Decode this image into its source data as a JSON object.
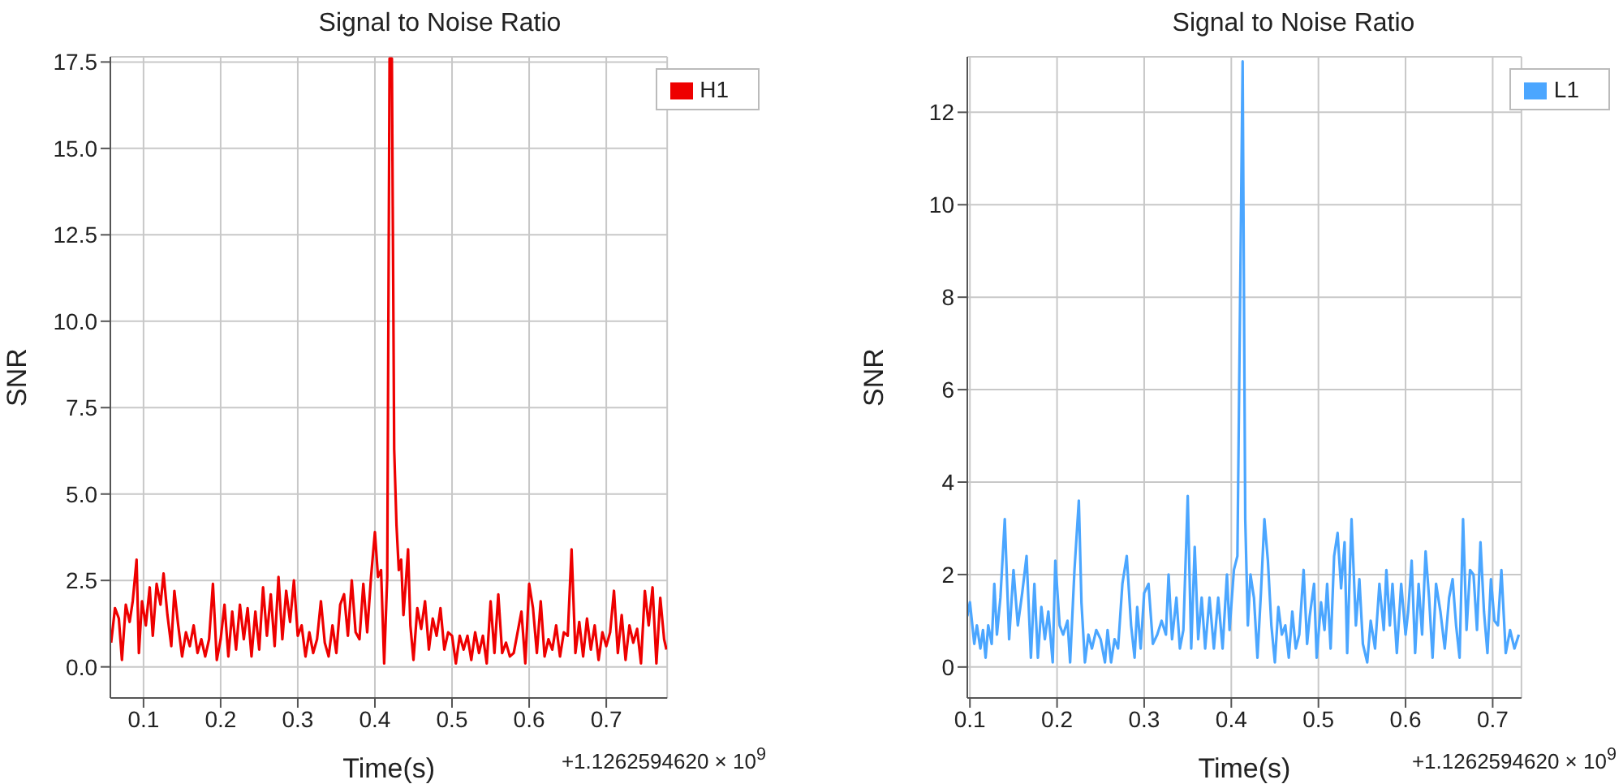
{
  "chart_data": [
    {
      "type": "line",
      "title": "Signal to Noise Ratio",
      "xlabel": "Time(s)",
      "ylabel": "SNR",
      "annotations": [
        "+1.1262594620 × 10$^{9}$"
      ],
      "xlim": [
        0.057,
        0.779
      ],
      "xticks": [
        0.1,
        0.2,
        0.3,
        0.4,
        0.5,
        0.6,
        0.7
      ],
      "ylim": [
        -0.9,
        17.65
      ],
      "yticks": [
        {
          "value": 0,
          "label": "0.0"
        },
        {
          "value": 2.5,
          "label": "2.5"
        },
        {
          "value": 5,
          "label": "5.0"
        },
        {
          "value": 7.5,
          "label": "7.5"
        },
        {
          "value": 10,
          "label": "10.0"
        },
        {
          "value": 12.5,
          "label": "12.5"
        },
        {
          "value": 15,
          "label": "15.0"
        },
        {
          "value": 17.5,
          "label": "17.5"
        }
      ],
      "grid": true,
      "legend": "top right",
      "series": [
        {
          "name": "H1",
          "color": "#ee0000",
          "x": [
            0.058,
            0.063,
            0.068,
            0.072,
            0.077,
            0.082,
            0.086,
            0.091,
            0.094,
            0.098,
            0.103,
            0.108,
            0.112,
            0.117,
            0.122,
            0.126,
            0.131,
            0.136,
            0.14,
            0.145,
            0.15,
            0.155,
            0.16,
            0.165,
            0.17,
            0.175,
            0.18,
            0.185,
            0.19,
            0.195,
            0.2,
            0.205,
            0.21,
            0.215,
            0.22,
            0.225,
            0.23,
            0.235,
            0.24,
            0.245,
            0.25,
            0.255,
            0.26,
            0.265,
            0.27,
            0.275,
            0.28,
            0.285,
            0.29,
            0.295,
            0.3,
            0.305,
            0.31,
            0.315,
            0.32,
            0.325,
            0.33,
            0.335,
            0.34,
            0.345,
            0.35,
            0.355,
            0.36,
            0.365,
            0.37,
            0.375,
            0.38,
            0.385,
            0.39,
            0.395,
            0.4,
            0.404,
            0.408,
            0.412,
            0.416,
            0.419,
            0.422,
            0.425,
            0.428,
            0.431,
            0.434,
            0.437,
            0.44,
            0.443,
            0.446,
            0.45,
            0.455,
            0.46,
            0.465,
            0.47,
            0.475,
            0.48,
            0.485,
            0.49,
            0.495,
            0.5,
            0.505,
            0.51,
            0.515,
            0.52,
            0.525,
            0.53,
            0.535,
            0.54,
            0.545,
            0.55,
            0.555,
            0.56,
            0.565,
            0.57,
            0.575,
            0.58,
            0.59,
            0.595,
            0.6,
            0.605,
            0.61,
            0.615,
            0.62,
            0.625,
            0.63,
            0.635,
            0.64,
            0.645,
            0.65,
            0.655,
            0.66,
            0.665,
            0.67,
            0.675,
            0.68,
            0.685,
            0.69,
            0.695,
            0.7,
            0.705,
            0.71,
            0.715,
            0.72,
            0.725,
            0.73,
            0.735,
            0.74,
            0.745,
            0.75,
            0.755,
            0.76,
            0.765,
            0.77,
            0.775,
            0.778
          ],
          "values": [
            0.7,
            1.7,
            1.4,
            0.2,
            1.8,
            1.3,
            1.9,
            3.1,
            0.4,
            1.9,
            1.2,
            2.3,
            0.9,
            2.4,
            1.8,
            2.7,
            1.5,
            0.6,
            2.2,
            1.2,
            0.3,
            1.0,
            0.6,
            1.2,
            0.4,
            0.8,
            0.3,
            0.8,
            2.4,
            0.2,
            0.8,
            1.8,
            0.3,
            1.6,
            0.5,
            1.8,
            0.8,
            1.7,
            0.3,
            1.6,
            0.5,
            2.3,
            0.9,
            2.1,
            0.6,
            2.6,
            0.8,
            2.2,
            1.3,
            2.5,
            0.9,
            1.2,
            0.3,
            1.0,
            0.4,
            0.8,
            1.9,
            0.7,
            0.3,
            1.2,
            0.4,
            1.8,
            2.1,
            0.9,
            2.5,
            1.0,
            0.8,
            2.4,
            1.0,
            2.6,
            3.9,
            2.6,
            2.8,
            0.1,
            2.6,
            17.6,
            17.6,
            6.3,
            4.1,
            2.8,
            3.1,
            1.5,
            2.4,
            3.4,
            1.2,
            0.2,
            1.7,
            1.1,
            1.9,
            0.5,
            1.4,
            0.9,
            1.7,
            0.5,
            1.0,
            0.9,
            0.1,
            0.9,
            0.5,
            0.9,
            0.2,
            1.0,
            0.4,
            0.9,
            0.1,
            1.9,
            0.4,
            2.1,
            0.4,
            0.7,
            0.3,
            0.4,
            1.6,
            0.1,
            2.4,
            1.7,
            0.4,
            1.9,
            0.3,
            0.8,
            0.5,
            1.2,
            0.3,
            1.0,
            0.9,
            3.4,
            0.4,
            1.3,
            0.3,
            1.4,
            0.5,
            1.2,
            0.2,
            1.0,
            0.6,
            1.0,
            2.2,
            0.4,
            1.5,
            0.2,
            1.2,
            0.7,
            1.1,
            0.1,
            2.2,
            1.2,
            2.3,
            0.1,
            2.0,
            0.8,
            0.5
          ]
        }
      ]
    },
    {
      "type": "line",
      "title": "Signal to Noise Ratio",
      "xlabel": "Time(s)",
      "ylabel": "SNR",
      "annotations": [
        "+1.1262594620 × 10$^{9}$"
      ],
      "xlim": [
        0.097,
        0.733
      ],
      "xticks": [
        0.1,
        0.2,
        0.3,
        0.4,
        0.5,
        0.6,
        0.7
      ],
      "ylim": [
        -0.67,
        13.2
      ],
      "yticks": [
        0,
        2,
        4,
        6,
        8,
        10,
        12
      ],
      "grid": true,
      "legend": "top right",
      "series": [
        {
          "name": "L1",
          "color": "#4ba6ff",
          "x": [
            0.097,
            0.1,
            0.105,
            0.108,
            0.112,
            0.115,
            0.118,
            0.121,
            0.125,
            0.128,
            0.131,
            0.135,
            0.14,
            0.145,
            0.15,
            0.155,
            0.16,
            0.165,
            0.17,
            0.174,
            0.178,
            0.182,
            0.186,
            0.19,
            0.195,
            0.198,
            0.203,
            0.207,
            0.212,
            0.215,
            0.22,
            0.225,
            0.228,
            0.232,
            0.236,
            0.24,
            0.245,
            0.25,
            0.255,
            0.258,
            0.262,
            0.266,
            0.27,
            0.275,
            0.28,
            0.285,
            0.289,
            0.292,
            0.296,
            0.3,
            0.305,
            0.31,
            0.315,
            0.32,
            0.325,
            0.328,
            0.332,
            0.337,
            0.341,
            0.345,
            0.35,
            0.354,
            0.358,
            0.362,
            0.366,
            0.37,
            0.375,
            0.38,
            0.385,
            0.39,
            0.395,
            0.398,
            0.403,
            0.407,
            0.413,
            0.416,
            0.419,
            0.422,
            0.426,
            0.43,
            0.434,
            0.438,
            0.442,
            0.446,
            0.45,
            0.454,
            0.458,
            0.462,
            0.466,
            0.47,
            0.474,
            0.478,
            0.483,
            0.487,
            0.49,
            0.495,
            0.498,
            0.503,
            0.507,
            0.51,
            0.514,
            0.518,
            0.522,
            0.526,
            0.53,
            0.533,
            0.538,
            0.543,
            0.547,
            0.551,
            0.556,
            0.56,
            0.565,
            0.57,
            0.575,
            0.578,
            0.582,
            0.585,
            0.59,
            0.595,
            0.6,
            0.603,
            0.607,
            0.611,
            0.615,
            0.619,
            0.623,
            0.627,
            0.631,
            0.635,
            0.64,
            0.645,
            0.65,
            0.654,
            0.658,
            0.662,
            0.666,
            0.67,
            0.674,
            0.678,
            0.682,
            0.686,
            0.69,
            0.694,
            0.698,
            0.702,
            0.706,
            0.71,
            0.715,
            0.72,
            0.725,
            0.73
          ],
          "values": [
            1.1,
            1.4,
            0.5,
            0.9,
            0.4,
            0.8,
            0.2,
            0.9,
            0.5,
            1.8,
            0.7,
            1.5,
            3.2,
            0.6,
            2.1,
            0.9,
            1.6,
            2.4,
            0.2,
            1.8,
            0.2,
            1.3,
            0.6,
            1.2,
            0.1,
            2.3,
            0.9,
            0.7,
            1.0,
            0.1,
            2.1,
            3.6,
            1.4,
            0.1,
            0.7,
            0.4,
            0.8,
            0.6,
            0.1,
            0.8,
            0.1,
            0.6,
            0.4,
            1.8,
            2.4,
            0.9,
            0.2,
            1.3,
            0.4,
            1.6,
            1.8,
            0.5,
            0.7,
            1.0,
            0.7,
            2.0,
            0.6,
            1.5,
            0.4,
            0.8,
            3.7,
            0.4,
            2.6,
            0.6,
            1.5,
            0.4,
            1.5,
            0.4,
            1.5,
            0.4,
            2.0,
            0.8,
            2.1,
            2.4,
            13.1,
            3.2,
            0.9,
            2.0,
            1.5,
            0.2,
            1.6,
            3.2,
            2.3,
            0.9,
            0.1,
            1.3,
            0.7,
            0.9,
            0.2,
            1.2,
            0.4,
            0.7,
            2.1,
            0.5,
            1.1,
            1.8,
            0.2,
            1.4,
            0.8,
            1.8,
            0.4,
            2.4,
            2.9,
            1.7,
            2.7,
            0.3,
            3.2,
            0.9,
            1.9,
            0.5,
            0.1,
            1.0,
            0.4,
            1.8,
            0.8,
            2.1,
            0.9,
            1.8,
            0.3,
            1.8,
            0.7,
            1.2,
            2.3,
            0.3,
            1.8,
            0.7,
            2.5,
            1.5,
            0.2,
            1.8,
            1.2,
            0.4,
            1.5,
            1.9,
            0.9,
            0.2,
            3.2,
            0.8,
            2.1,
            2.0,
            0.8,
            2.7,
            1.2,
            0.3,
            1.9,
            1.0,
            0.9,
            2.1,
            0.3,
            0.8,
            0.4,
            0.7
          ]
        }
      ]
    }
  ]
}
